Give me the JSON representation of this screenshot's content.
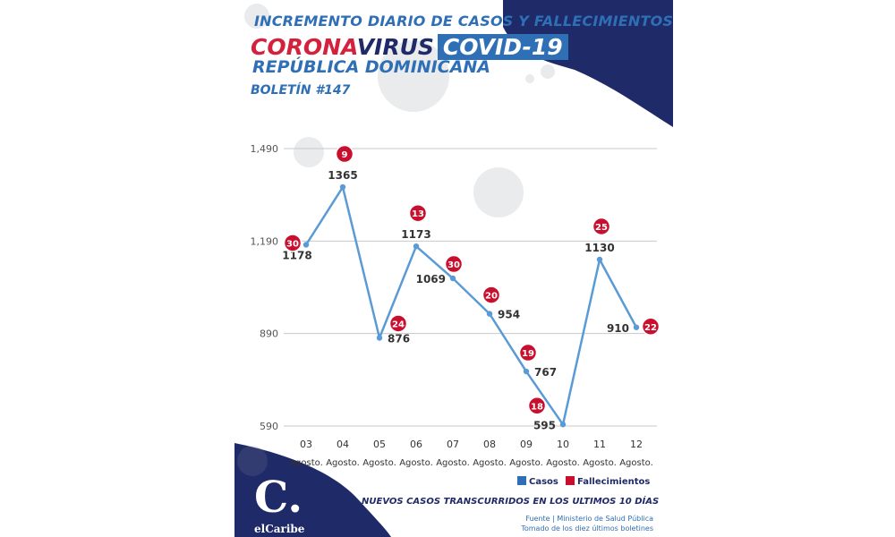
{
  "header": {
    "title_line1": "INCREMENTO DIARIO DE CASOS Y FALLECIMIENTOS",
    "title_corona": "CORONA",
    "title_virus": "VIRUS",
    "title_covid": "COVID-19",
    "title_country": "REPÚBLICA DOMINICANA",
    "bulletin": "BOLETÍN #147"
  },
  "legend": {
    "casos_label": "Casos",
    "fallecimientos_label": "Fallecimientos"
  },
  "footer": {
    "chart_caption": "NUEVOS CASOS TRANSCURRIDOS EN LOS ULTIMOS 10 DÍAS",
    "source_line1": "Fuente | Ministerio de Salud Pública",
    "source_line2": "Tomado de  los diez últimos boletines",
    "logo_letter": "C.",
    "logo_name": "elCaribe"
  },
  "colors": {
    "line": "#5b9bd5",
    "death_badge": "#c8102e",
    "navy": "#1f2a68",
    "accent_blue": "#2e6fb5",
    "grid": "#c8c8c8"
  },
  "chart_data": {
    "type": "line",
    "categories": [
      "03",
      "04",
      "05",
      "06",
      "07",
      "08",
      "09",
      "10",
      "11",
      "12"
    ],
    "category_sub": "Agosto.",
    "series": [
      {
        "name": "Casos",
        "values": [
          1178,
          1365,
          876,
          1173,
          1069,
          954,
          767,
          595,
          1130,
          910
        ]
      },
      {
        "name": "Fallecimientos",
        "values": [
          30,
          9,
          24,
          13,
          30,
          20,
          19,
          18,
          25,
          22
        ]
      }
    ],
    "yticks": [
      590,
      890,
      1190,
      1490
    ],
    "ytick_labels": [
      "590",
      "890",
      "1,190",
      "1,490"
    ],
    "ylim": [
      590,
      1490
    ],
    "grid": true,
    "legend_position": "bottom-right"
  }
}
